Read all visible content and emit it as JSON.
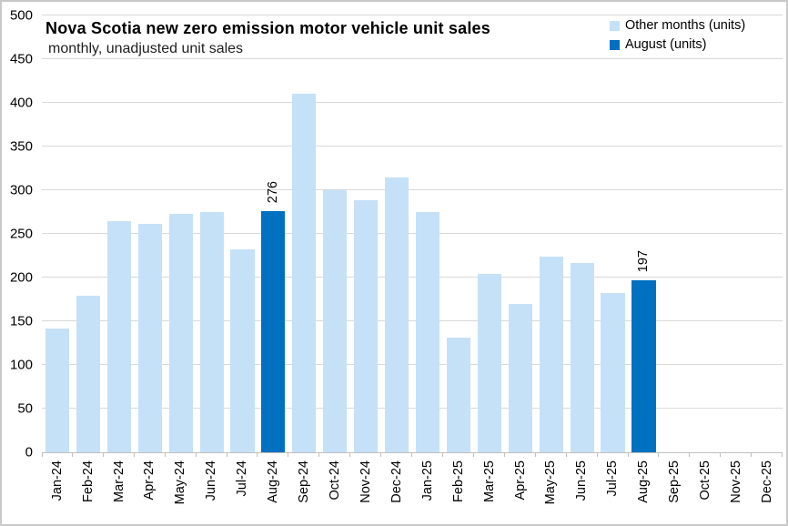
{
  "header": {
    "title": "Nova Scotia new zero emission motor vehicle unit sales",
    "subtitle": "monthly, unadjusted unit sales"
  },
  "legend": {
    "items": [
      {
        "label": "Other months (units)",
        "color_key": "other"
      },
      {
        "label": "August (units)",
        "color_key": "august"
      }
    ]
  },
  "colors": {
    "other": "#c5e1f7",
    "august": "#0070c0",
    "gridline": "#d9d9d9",
    "axis": "#bfbfbf"
  },
  "chart_data": {
    "type": "bar",
    "title": "Nova Scotia new zero emission motor vehicle unit sales",
    "subtitle": "monthly, unadjusted unit sales",
    "categories": [
      "Jan-24",
      "Feb-24",
      "Mar-24",
      "Apr-24",
      "May-24",
      "Jun-24",
      "Jul-24",
      "Aug-24",
      "Sep-24",
      "Oct-24",
      "Nov-24",
      "Dec-24",
      "Jan-25",
      "Feb-25",
      "Mar-25",
      "Apr-25",
      "May-25",
      "Jun-25",
      "Jul-25",
      "Aug-25",
      "Sep-25",
      "Oct-25",
      "Nov-25",
      "Dec-25"
    ],
    "values": [
      142,
      179,
      265,
      261,
      273,
      275,
      232,
      276,
      410,
      300,
      289,
      315,
      275,
      131,
      204,
      170,
      224,
      217,
      182,
      197,
      null,
      null,
      null,
      null
    ],
    "august_indices": [
      7,
      19
    ],
    "data_labels": [
      {
        "category": "Aug-24",
        "value": 276
      },
      {
        "category": "Aug-25",
        "value": 197
      }
    ],
    "series": [
      {
        "name": "Other months (units)",
        "color_key": "other"
      },
      {
        "name": "August (units)",
        "color_key": "august"
      }
    ],
    "xlabel": "",
    "ylabel": "",
    "ylim": [
      0,
      500
    ],
    "ytick_step": 50,
    "yticks": [
      0,
      50,
      100,
      150,
      200,
      250,
      300,
      350,
      400,
      450,
      500
    ],
    "grid": true,
    "legend_position": "top-right"
  }
}
